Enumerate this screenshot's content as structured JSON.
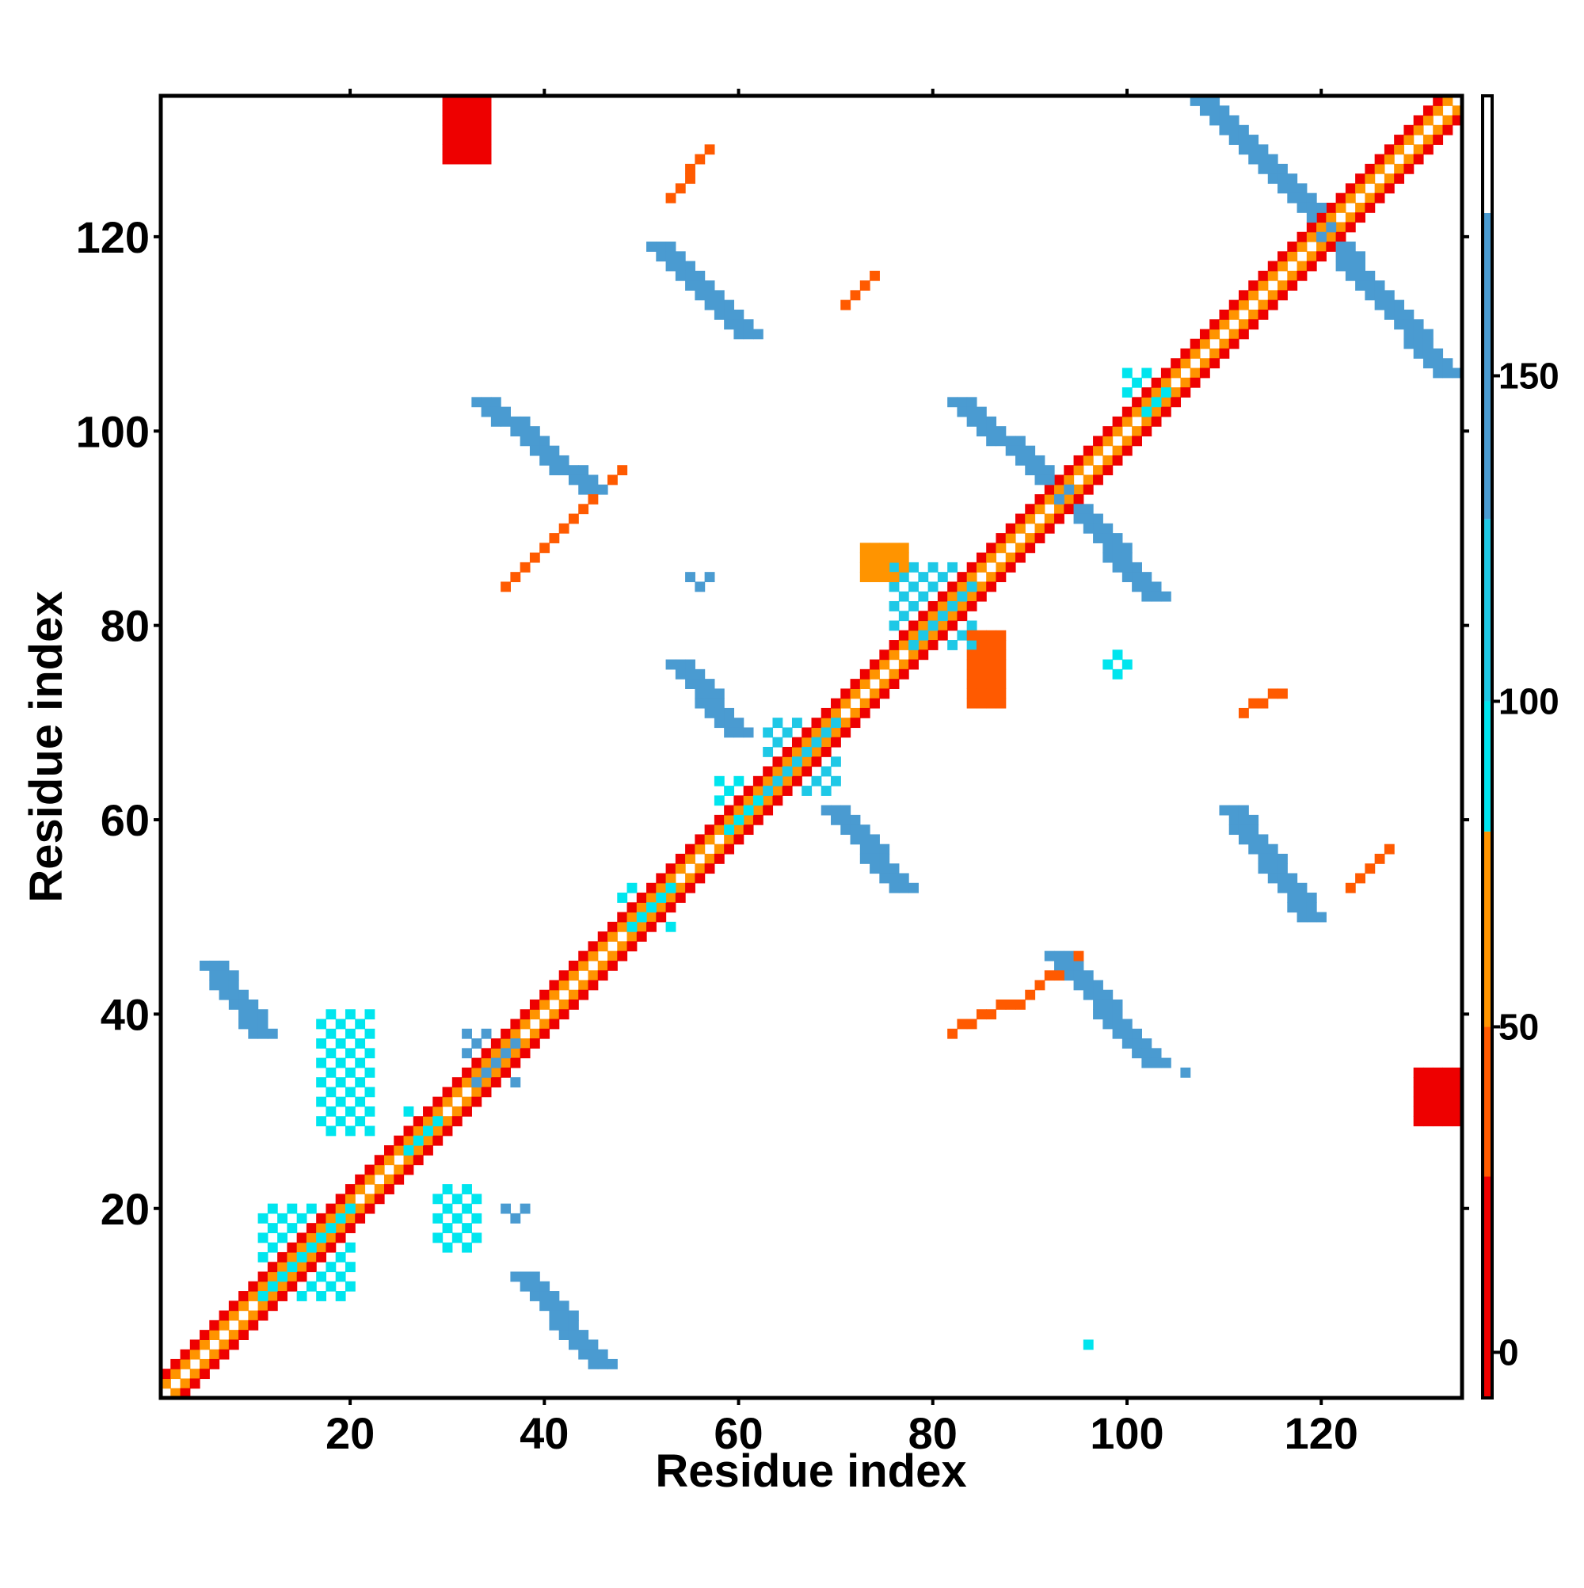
{
  "chart_data": {
    "type": "heatmap",
    "title": "",
    "xlabel": "Residue index",
    "ylabel": "Residue index",
    "xlim": [
      0.5,
      134.5
    ],
    "ylim": [
      0.5,
      134.5
    ],
    "x_ticks": [
      20,
      40,
      60,
      80,
      100,
      120
    ],
    "y_ticks": [
      20,
      40,
      60,
      80,
      100,
      120
    ],
    "colorbar": {
      "ticks": [
        0,
        50,
        100,
        150
      ],
      "range": [
        -7,
        193
      ],
      "bands": [
        {
          "from": -7,
          "to": 27,
          "color": "#ee0000"
        },
        {
          "from": 27,
          "to": 50,
          "color": "#ff5a00"
        },
        {
          "from": 50,
          "to": 80,
          "color": "#ff9400"
        },
        {
          "from": 80,
          "to": 100,
          "color": "#00e5ee"
        },
        {
          "from": 100,
          "to": 128,
          "color": "#1ec8e6"
        },
        {
          "from": 128,
          "to": 175,
          "color": "#4a9bd1"
        },
        {
          "from": 175,
          "to": 193,
          "color": "#ffffff"
        }
      ]
    },
    "grid": false,
    "legend": "colorbar-right",
    "diagonal_band": {
      "residues": [
        1,
        134
      ],
      "value_near": 60,
      "value_second": 10
    },
    "segments": [
      {
        "x": [
          6,
          11
        ],
        "y": [
          45,
          38
        ],
        "value": 150,
        "width": 3
      },
      {
        "x": [
          34,
          45
        ],
        "y": [
          103,
          94
        ],
        "value": 150,
        "width": 3
      },
      {
        "x": [
          52,
          61
        ],
        "y": [
          119,
          110
        ],
        "value": 150,
        "width": 3
      },
      {
        "x": [
          83,
          93
        ],
        "y": [
          103,
          94
        ],
        "value": 150,
        "width": 3
      },
      {
        "x": [
          108,
          120
        ],
        "y": [
          134,
          122
        ],
        "value": 150,
        "width": 3
      },
      {
        "x": [
          120,
          133
        ],
        "y": [
          121,
          106
        ],
        "value": 150,
        "width": 3
      },
      {
        "x": [
          94,
          103
        ],
        "y": [
          93,
          83
        ],
        "value": 150,
        "width": 3
      },
      {
        "x": [
          54,
          60
        ],
        "y": [
          76,
          69
        ],
        "value": 150,
        "width": 3
      },
      {
        "x": [
          70,
          77
        ],
        "y": [
          61,
          53
        ],
        "value": 150,
        "width": 3
      },
      {
        "x": [
          111,
          119
        ],
        "y": [
          61,
          50
        ],
        "value": 150,
        "width": 3
      },
      {
        "x": [
          93,
          103
        ],
        "y": [
          46,
          35
        ],
        "value": 150,
        "width": 3
      },
      {
        "x": [
          38,
          46
        ],
        "y": [
          13,
          4
        ],
        "value": 150,
        "width": 3
      },
      {
        "x": [
          36,
          48
        ],
        "y": [
          84,
          96
        ],
        "value": 40,
        "width": 1
      },
      {
        "x": [
          82,
          88
        ],
        "y": [
          38,
          41
        ],
        "value": 40,
        "width": 1
      },
      {
        "x": [
          89,
          95
        ],
        "y": [
          41,
          46
        ],
        "value": 40,
        "width": 1
      },
      {
        "x": [
          53,
          57
        ],
        "y": [
          124,
          129
        ],
        "value": 40,
        "width": 1
      },
      {
        "x": [
          71,
          74
        ],
        "y": [
          113,
          116
        ],
        "value": 40,
        "width": 1
      },
      {
        "x": [
          112,
          116
        ],
        "y": [
          71,
          73
        ],
        "value": 40,
        "width": 1
      },
      {
        "x": [
          123,
          127
        ],
        "y": [
          53,
          57
        ],
        "value": 40,
        "width": 1
      }
    ],
    "blocks": [
      {
        "x": [
          30,
          34
        ],
        "y": [
          128,
          134
        ],
        "value": 10
      },
      {
        "x": [
          130,
          134
        ],
        "y": [
          29,
          34
        ],
        "value": 10
      },
      {
        "x": [
          58,
          62
        ],
        "y": [
          59,
          64
        ],
        "value": 95
      },
      {
        "x": [
          63,
          70
        ],
        "y": [
          63,
          70
        ],
        "value": 110
      },
      {
        "x": [
          48,
          53
        ],
        "y": [
          49,
          53
        ],
        "value": 95
      },
      {
        "x": [
          32,
          37
        ],
        "y": [
          33,
          38
        ],
        "value": 130
      },
      {
        "x": [
          11,
          20
        ],
        "y": [
          11,
          20
        ],
        "value": 95
      },
      {
        "x": [
          26,
          29
        ],
        "y": [
          26,
          30
        ],
        "value": 95
      },
      {
        "x": [
          76,
          84
        ],
        "y": [
          78,
          86
        ],
        "value": 120
      },
      {
        "x": [
          84,
          87
        ],
        "y": [
          72,
          79
        ],
        "value": 40
      },
      {
        "x": [
          100,
          104
        ],
        "y": [
          102,
          106
        ],
        "value": 95
      },
      {
        "x": [
          29,
          33
        ],
        "y": [
          16,
          22
        ],
        "value": 95
      },
      {
        "x": [
          36,
          38
        ],
        "y": [
          19,
          20
        ],
        "value": 130
      },
      {
        "x": [
          17,
          22
        ],
        "y": [
          28,
          40
        ],
        "value": 95
      },
      {
        "x": [
          98,
          100
        ],
        "y": [
          75,
          77
        ],
        "value": 95
      },
      {
        "x": [
          95,
          96
        ],
        "y": [
          6,
          6
        ],
        "value": 95
      },
      {
        "x": [
          73,
          77
        ],
        "y": [
          85,
          88
        ],
        "value": 60
      },
      {
        "x": [
          105,
          107
        ],
        "y": [
          34,
          34
        ],
        "value": 130
      },
      {
        "x": [
          55,
          57
        ],
        "y": [
          84,
          85
        ],
        "value": 130
      }
    ]
  }
}
